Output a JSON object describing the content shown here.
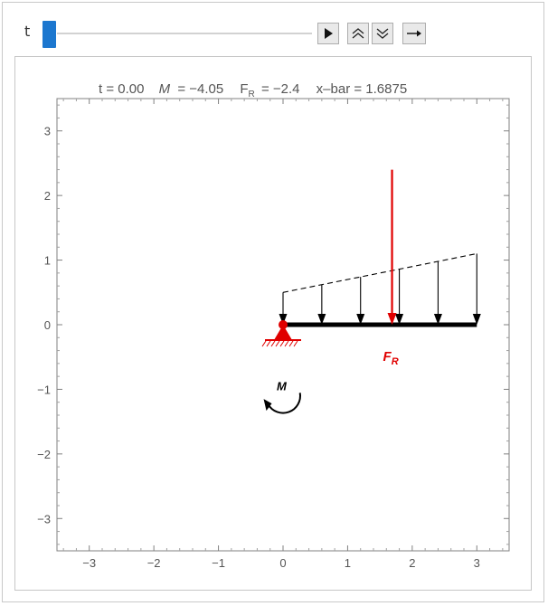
{
  "controls": {
    "slider_label": "t",
    "slider_position": 0.0,
    "buttons": [
      "play",
      "faster-slower",
      "direction"
    ]
  },
  "plot": {
    "title_parts": {
      "t": "t = 0.00",
      "M_symbol": "M",
      "M_value": "= −4.05",
      "FR_symbol": "F",
      "FR_sub": "R",
      "FR_value": "= −2.4",
      "xbar": "x–bar = 1.6875"
    },
    "moment_label": "M",
    "resultant_label": "F",
    "resultant_sub": "R",
    "colors": {
      "accent": "#e00000",
      "beam": "#000000",
      "axis": "#6a6a6a"
    }
  },
  "chart_data": {
    "type": "line",
    "xlim": [
      -3.5,
      3.5
    ],
    "ylim": [
      -3.5,
      3.5
    ],
    "x_ticks": [
      "−3",
      "−2",
      "−1",
      "0",
      "1",
      "2",
      "3"
    ],
    "y_ticks": [
      "3",
      "2",
      "1",
      "0",
      "−1",
      "−2",
      "−3"
    ],
    "grid": false,
    "beam": {
      "x": [
        0,
        3
      ],
      "y": [
        0,
        0
      ]
    },
    "load_arrows": {
      "x": [
        0,
        0.6,
        1.2,
        1.8,
        2.4,
        3.0
      ],
      "top_y": [
        0.5,
        0.6,
        0.7,
        0.8,
        0.9,
        1.0
      ]
    },
    "load_line": {
      "x": [
        0,
        3
      ],
      "y": [
        0.5,
        1.1
      ]
    },
    "resultant": {
      "x": 1.6875,
      "y_top": 2.4,
      "y_bottom": 0
    },
    "support": {
      "x": 0,
      "y": 0
    },
    "moment": {
      "x": 0,
      "y": -1.1,
      "direction": "clockwise"
    }
  }
}
